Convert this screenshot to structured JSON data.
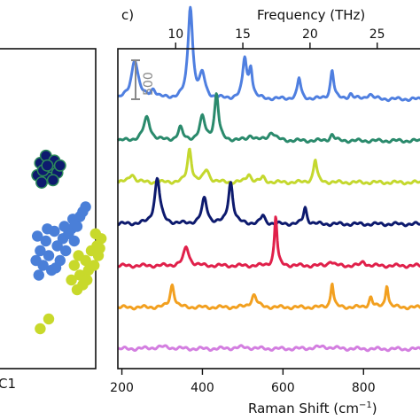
{
  "chart_data": [
    {
      "type": "scatter",
      "panel": "left",
      "xlabel_fragment": "C1",
      "series": [
        {
          "color": "#0d1a6e",
          "points": [
            [
              -1.8,
              1.2
            ],
            [
              -1.6,
              1.35
            ],
            [
              -1.4,
              1.1
            ],
            [
              -1.9,
              0.95
            ],
            [
              -1.5,
              0.9
            ],
            [
              -1.3,
              1.25
            ],
            [
              -1.7,
              1.05
            ],
            [
              -1.2,
              1.0
            ],
            [
              -1.55,
              1.15
            ],
            [
              -1.35,
              0.85
            ],
            [
              -1.1,
              1.15
            ],
            [
              -1.75,
              0.8
            ]
          ]
        },
        {
          "color": "#4a7fd8",
          "points": [
            [
              -1.9,
              -0.3
            ],
            [
              -1.6,
              -0.4
            ],
            [
              -1.3,
              -0.2
            ],
            [
              -1.0,
              -0.35
            ],
            [
              -0.7,
              -0.15
            ],
            [
              -0.4,
              0.1
            ],
            [
              -0.2,
              0.3
            ],
            [
              -1.8,
              -0.6
            ],
            [
              -1.5,
              -0.7
            ],
            [
              -1.2,
              -0.5
            ],
            [
              -0.9,
              -0.6
            ],
            [
              -0.6,
              -0.4
            ],
            [
              -1.7,
              -0.9
            ],
            [
              -1.4,
              -1.0
            ],
            [
              -1.1,
              -0.8
            ],
            [
              -0.8,
              -0.25
            ],
            [
              -0.5,
              -0.1
            ],
            [
              -1.95,
              -0.8
            ],
            [
              -0.3,
              0.2
            ],
            [
              -1.25,
              -0.95
            ],
            [
              -0.95,
              -0.1
            ],
            [
              -1.55,
              -0.15
            ],
            [
              -0.65,
              0.05
            ],
            [
              -1.85,
              -1.1
            ]
          ]
        },
        {
          "color": "#c8d92b",
          "points": [
            [
              -0.6,
              -0.9
            ],
            [
              -0.4,
              -1.1
            ],
            [
              -0.2,
              -0.8
            ],
            [
              0.0,
              -0.6
            ],
            [
              0.2,
              -0.5
            ],
            [
              0.35,
              -0.35
            ],
            [
              -0.5,
              -1.4
            ],
            [
              -0.3,
              -1.3
            ],
            [
              -0.1,
              -1.0
            ],
            [
              0.1,
              -0.9
            ],
            [
              0.25,
              -0.7
            ],
            [
              -0.7,
              -1.2
            ],
            [
              -1.5,
              -2.0
            ],
            [
              -1.8,
              -2.2
            ],
            [
              -0.45,
              -0.7
            ],
            [
              0.15,
              -0.25
            ],
            [
              -0.15,
              -1.2
            ],
            [
              0.3,
              -0.55
            ]
          ]
        }
      ]
    },
    {
      "type": "line",
      "panel_label": "c)",
      "xlabel": "Raman Shift (cm",
      "xlabel_sup": "−1",
      "xlabel_end": ")",
      "x2label": "Frequency (THz)",
      "xlim": [
        190,
        960
      ],
      "xticks": [
        200,
        400,
        600,
        800
      ],
      "x2ticks": [
        10,
        15,
        20,
        25
      ],
      "x2_conversion_cm_per_THz": 33.356,
      "scale_bar": {
        "label": "500",
        "value": 500
      },
      "series": [
        {
          "color": "#4f7fe0",
          "baseline": 6.3,
          "peaks": [
            [
              232,
              0.95,
              10
            ],
            [
              278,
              0.2,
              8
            ],
            [
              370,
              2.2,
              7
            ],
            [
              400,
              0.55,
              8
            ],
            [
              505,
              0.95,
              6
            ],
            [
              520,
              0.7,
              5
            ],
            [
              640,
              0.5,
              5
            ],
            [
              722,
              0.7,
              5
            ],
            [
              768,
              0.12,
              6
            ],
            [
              815,
              0.12,
              8
            ]
          ]
        },
        {
          "color": "#2a8a6c",
          "baseline": 5.3,
          "peaks": [
            [
              262,
              0.55,
              10
            ],
            [
              345,
              0.3,
              7
            ],
            [
              400,
              0.55,
              8
            ],
            [
              435,
              1.1,
              6
            ],
            [
              520,
              0.12,
              8
            ],
            [
              572,
              0.2,
              10
            ],
            [
              722,
              0.15,
              6
            ]
          ]
        },
        {
          "color": "#c4d82e",
          "baseline": 4.3,
          "peaks": [
            [
              225,
              0.2,
              8
            ],
            [
              368,
              0.8,
              6
            ],
            [
              410,
              0.3,
              8
            ],
            [
              515,
              0.2,
              7
            ],
            [
              550,
              0.12,
              6
            ],
            [
              680,
              0.55,
              5
            ]
          ]
        },
        {
          "color": "#0d1a6e",
          "baseline": 3.3,
          "peaks": [
            [
              288,
              1.1,
              8
            ],
            [
              405,
              0.6,
              8
            ],
            [
              470,
              1.0,
              7
            ],
            [
              550,
              0.2,
              6
            ],
            [
              655,
              0.4,
              5
            ]
          ]
        },
        {
          "color": "#e0204a",
          "baseline": 2.3,
          "peaks": [
            [
              360,
              0.45,
              8
            ],
            [
              582,
              1.2,
              4
            ],
            [
              718,
              0.12,
              6
            ],
            [
              800,
              0.1,
              6
            ]
          ]
        },
        {
          "color": "#f2a020",
          "baseline": 1.3,
          "peaks": [
            [
              325,
              0.55,
              6
            ],
            [
              528,
              0.3,
              8
            ],
            [
              722,
              0.6,
              4
            ],
            [
              818,
              0.25,
              5
            ],
            [
              858,
              0.55,
              4
            ]
          ]
        },
        {
          "color": "#d37ee0",
          "baseline": 0.3,
          "peaks": [
            [
              300,
              0.05,
              30
            ],
            [
              500,
              0.04,
              30
            ],
            [
              700,
              0.05,
              30
            ]
          ]
        }
      ]
    }
  ]
}
